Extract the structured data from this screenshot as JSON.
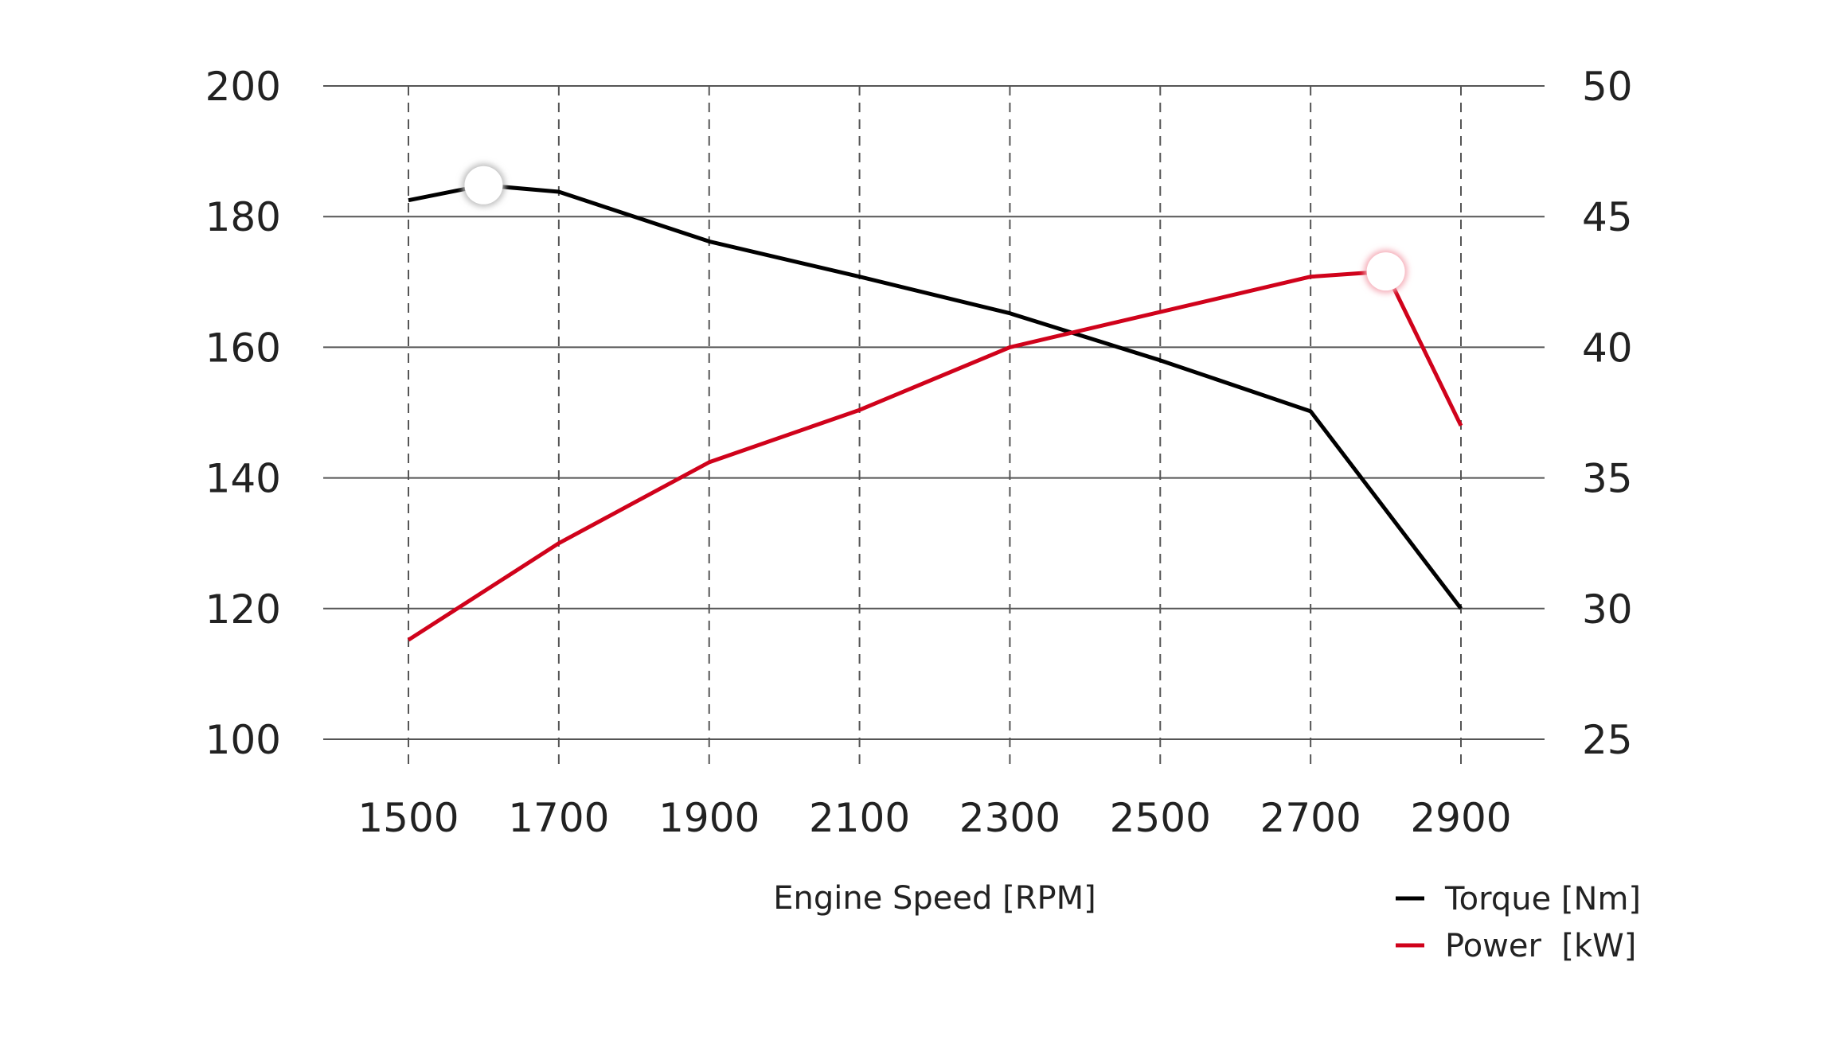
{
  "chart_data": {
    "type": "line",
    "title": "",
    "xlabel": "Engine Speed [RPM]",
    "ylabel_left": "",
    "ylabel_right": "",
    "x_ticks": [
      1500,
      1700,
      1900,
      2100,
      2300,
      2500,
      2700,
      2900
    ],
    "x_range": [
      1390,
      3000
    ],
    "y_left_ticks": [
      100,
      120,
      140,
      160,
      180,
      200
    ],
    "y_left_range": [
      100,
      200
    ],
    "y_right_ticks": [
      25,
      30,
      35,
      40,
      45,
      50
    ],
    "y_right_range": [
      25,
      50
    ],
    "grid": {
      "horizontal": "solid",
      "vertical": "dashed"
    },
    "legend_placement": "bottom-right",
    "series": [
      {
        "name": "Torque [Nm]",
        "axis": "left",
        "color": "#000000",
        "x": [
          1500,
          1600,
          1700,
          1900,
          2100,
          2300,
          2500,
          2700,
          2900
        ],
        "y": [
          182.5,
          184.8,
          183.8,
          176.2,
          170.8,
          165.2,
          158,
          150.2,
          120
        ],
        "highlight": {
          "x": 1600,
          "y": 184.8
        }
      },
      {
        "name": "Power  [kW]",
        "axis": "right",
        "color": "#d0021b",
        "x": [
          1500,
          1700,
          1900,
          2100,
          2300,
          2700,
          2800,
          2900
        ],
        "y": [
          28.8,
          32.5,
          35.6,
          37.6,
          40.0,
          42.7,
          42.9,
          37.0
        ],
        "highlight": {
          "x": 2800,
          "y": 42.9
        }
      }
    ]
  }
}
